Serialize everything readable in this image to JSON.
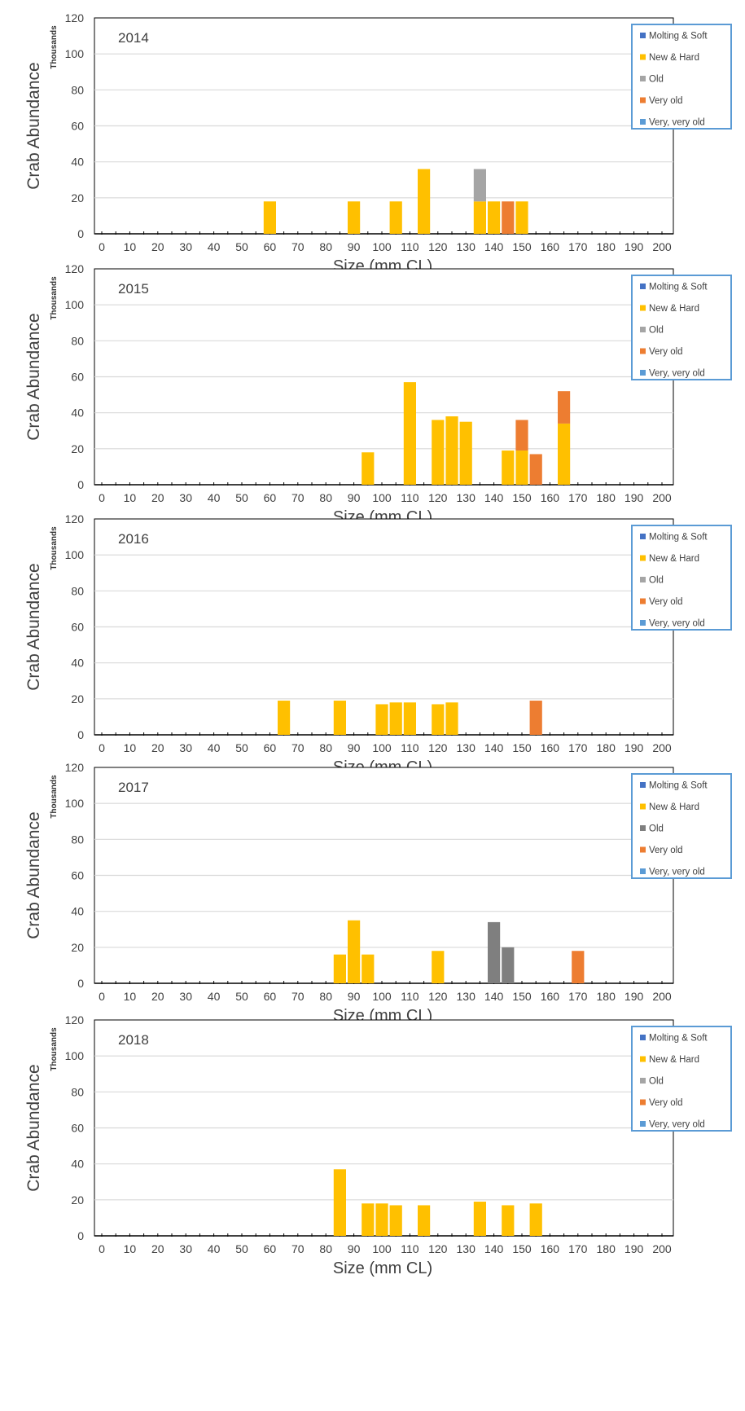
{
  "colors": {
    "molting_soft": "#4472C4",
    "new_hard": "#FFC000",
    "old": "#A5A5A5",
    "very_old": "#ED7D31",
    "very_very_old": "#5B9BD5",
    "dark_old": "#7F7F7F",
    "legend_border": "#5B9BD5",
    "grid": "#D9D9D9"
  },
  "chart_data": [
    {
      "type": "bar",
      "stacked": true,
      "annotation": "2014",
      "ylabel": "Crab Abundance",
      "yunit": "Thousands",
      "xlabel": "Size (mm CL)",
      "ylim": [
        0,
        120
      ],
      "yticks": [
        "0",
        "20",
        "40",
        "60",
        "80",
        "100",
        "120"
      ],
      "xticks": [
        "0",
        "10",
        "20",
        "30",
        "40",
        "50",
        "60",
        "70",
        "80",
        "90",
        "100",
        "110",
        "120",
        "130",
        "140",
        "150",
        "160",
        "170",
        "180",
        "190",
        "200"
      ],
      "bin_width": 5,
      "legend_position": "top-right",
      "series": [
        {
          "name": "Molting & Soft",
          "color": "#4472C4",
          "values": []
        },
        {
          "name": "New & Hard",
          "color": "#FFC000",
          "values": [
            [
              60,
              18
            ],
            [
              90,
              18
            ],
            [
              105,
              18
            ],
            [
              115,
              36
            ],
            [
              135,
              18
            ],
            [
              140,
              18
            ],
            [
              150,
              18
            ]
          ]
        },
        {
          "name": "Old",
          "color": "#A5A5A5",
          "values": [
            [
              135,
              18
            ]
          ]
        },
        {
          "name": "Very old",
          "color": "#ED7D31",
          "values": [
            [
              145,
              18
            ]
          ]
        },
        {
          "name": "Very, very old",
          "color": "#5B9BD5",
          "values": []
        }
      ]
    },
    {
      "type": "bar",
      "stacked": true,
      "annotation": "2015",
      "ylabel": "Crab Abundance",
      "yunit": "Thousands",
      "xlabel": "Size (mm CL)",
      "ylim": [
        0,
        120
      ],
      "yticks": [
        "0",
        "20",
        "40",
        "60",
        "80",
        "100",
        "120"
      ],
      "xticks": [
        "0",
        "10",
        "20",
        "30",
        "40",
        "50",
        "60",
        "70",
        "80",
        "90",
        "100",
        "110",
        "120",
        "130",
        "140",
        "150",
        "160",
        "170",
        "180",
        "190",
        "200"
      ],
      "bin_width": 5,
      "legend_position": "top-right",
      "series": [
        {
          "name": "Molting & Soft",
          "color": "#4472C4",
          "values": []
        },
        {
          "name": "New & Hard",
          "color": "#FFC000",
          "values": [
            [
              95,
              18
            ],
            [
              110,
              57
            ],
            [
              120,
              36
            ],
            [
              125,
              38
            ],
            [
              130,
              35
            ],
            [
              145,
              19
            ],
            [
              150,
              19
            ],
            [
              165,
              34
            ]
          ]
        },
        {
          "name": "Old",
          "color": "#A5A5A5",
          "values": []
        },
        {
          "name": "Very old",
          "color": "#ED7D31",
          "values": [
            [
              150,
              17
            ],
            [
              155,
              17
            ],
            [
              165,
              18
            ]
          ]
        },
        {
          "name": "Very, very old",
          "color": "#5B9BD5",
          "values": []
        }
      ]
    },
    {
      "type": "bar",
      "stacked": true,
      "annotation": "2016",
      "ylabel": "Crab Abundance",
      "yunit": "Thousands",
      "xlabel": "Size (mm CL)",
      "ylim": [
        0,
        120
      ],
      "yticks": [
        "0",
        "20",
        "40",
        "60",
        "80",
        "100",
        "120"
      ],
      "xticks": [
        "0",
        "10",
        "20",
        "30",
        "40",
        "50",
        "60",
        "70",
        "80",
        "90",
        "100",
        "110",
        "120",
        "130",
        "140",
        "150",
        "160",
        "170",
        "180",
        "190",
        "200"
      ],
      "bin_width": 5,
      "legend_position": "top-right",
      "series": [
        {
          "name": "Molting & Soft",
          "color": "#4472C4",
          "values": []
        },
        {
          "name": "New & Hard",
          "color": "#FFC000",
          "values": [
            [
              65,
              19
            ],
            [
              85,
              19
            ],
            [
              100,
              17
            ],
            [
              105,
              18
            ],
            [
              110,
              18
            ],
            [
              120,
              17
            ],
            [
              125,
              18
            ]
          ]
        },
        {
          "name": "Old",
          "color": "#A5A5A5",
          "values": []
        },
        {
          "name": "Very old",
          "color": "#ED7D31",
          "values": [
            [
              155,
              19
            ]
          ]
        },
        {
          "name": "Very, very old",
          "color": "#5B9BD5",
          "values": []
        }
      ]
    },
    {
      "type": "bar",
      "stacked": true,
      "annotation": "2017",
      "ylabel": "Crab Abundance",
      "yunit": "Thousands",
      "xlabel": "Size (mm CL)",
      "ylim": [
        0,
        120
      ],
      "yticks": [
        "0",
        "20",
        "40",
        "60",
        "80",
        "100",
        "120"
      ],
      "xticks": [
        "0",
        "10",
        "20",
        "30",
        "40",
        "50",
        "60",
        "70",
        "80",
        "90",
        "100",
        "110",
        "120",
        "130",
        "140",
        "150",
        "160",
        "170",
        "180",
        "190",
        "200"
      ],
      "bin_width": 5,
      "legend_position": "top-right",
      "series": [
        {
          "name": "Molting & Soft",
          "color": "#4472C4",
          "values": []
        },
        {
          "name": "New & Hard",
          "color": "#FFC000",
          "values": [
            [
              85,
              16
            ],
            [
              90,
              35
            ],
            [
              95,
              16
            ],
            [
              120,
              18
            ]
          ]
        },
        {
          "name": "Old",
          "color": "#7F7F7F",
          "values": [
            [
              140,
              34
            ],
            [
              145,
              20
            ]
          ]
        },
        {
          "name": "Very old",
          "color": "#ED7D31",
          "values": [
            [
              170,
              18
            ]
          ]
        },
        {
          "name": "Very, very old",
          "color": "#5B9BD5",
          "values": []
        }
      ]
    },
    {
      "type": "bar",
      "stacked": true,
      "annotation": "2018",
      "ylabel": "Crab Abundance",
      "yunit": "Thousands",
      "xlabel": "Size (mm CL)",
      "ylim": [
        0,
        120
      ],
      "yticks": [
        "0",
        "20",
        "40",
        "60",
        "80",
        "100",
        "120"
      ],
      "xticks": [
        "0",
        "10",
        "20",
        "30",
        "40",
        "50",
        "60",
        "70",
        "80",
        "90",
        "100",
        "110",
        "120",
        "130",
        "140",
        "150",
        "160",
        "170",
        "180",
        "190",
        "200"
      ],
      "bin_width": 5,
      "legend_position": "top-right",
      "series": [
        {
          "name": "Molting & Soft",
          "color": "#4472C4",
          "values": []
        },
        {
          "name": "New & Hard",
          "color": "#FFC000",
          "values": [
            [
              85,
              37
            ],
            [
              95,
              18
            ],
            [
              100,
              18
            ],
            [
              105,
              17
            ],
            [
              115,
              17
            ],
            [
              135,
              19
            ],
            [
              145,
              17
            ],
            [
              155,
              18
            ]
          ]
        },
        {
          "name": "Old",
          "color": "#A5A5A5",
          "values": []
        },
        {
          "name": "Very old",
          "color": "#ED7D31",
          "values": []
        },
        {
          "name": "Very, very old",
          "color": "#5B9BD5",
          "values": []
        }
      ]
    }
  ]
}
